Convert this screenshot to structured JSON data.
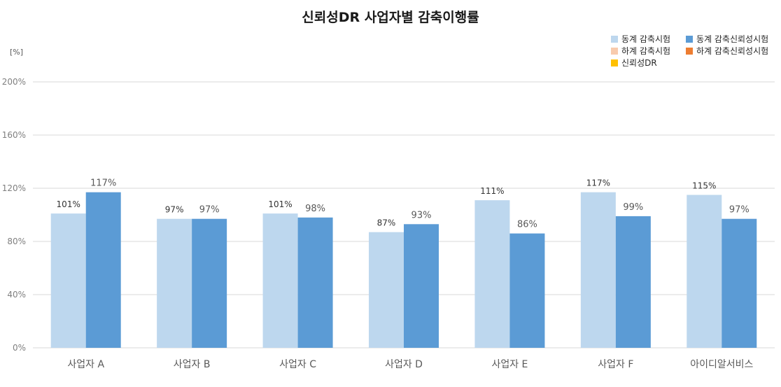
{
  "chart_data": {
    "type": "bar",
    "title": "신뢰성DR 사업자별 감축이행률",
    "unit_label": "[%]",
    "categories": [
      "사업자 A",
      "사업자 B",
      "사업자 C",
      "사업자 D",
      "사업자 E",
      "사업자 F",
      "아이디알서비스"
    ],
    "series": [
      {
        "name": "동계 감축시험",
        "color": "#bdd7ee",
        "values": [
          101,
          97,
          101,
          87,
          111,
          117,
          115
        ],
        "labels": [
          "101%",
          "97%",
          "101%",
          "87%",
          "111%",
          "117%",
          "115%"
        ]
      },
      {
        "name": "동계 감축신뢰성시험",
        "color": "#5b9bd5",
        "values": [
          117,
          97,
          98,
          93,
          86,
          99,
          97
        ],
        "labels": [
          "117%",
          "97%",
          "98%",
          "93%",
          "86%",
          "99%",
          "97%"
        ]
      }
    ],
    "legend_only_series": [
      {
        "name": "하계 감축시험",
        "color": "#f8cbad"
      },
      {
        "name": "하계 감축신뢰성시험",
        "color": "#ed7d31"
      },
      {
        "name": "신뢰성DR",
        "color": "#ffc000"
      }
    ],
    "yticks": [
      "0%",
      "40%",
      "80%",
      "120%",
      "160%",
      "200%"
    ],
    "ylim": [
      0,
      200
    ],
    "grid": true,
    "legend_position": "top-right"
  }
}
